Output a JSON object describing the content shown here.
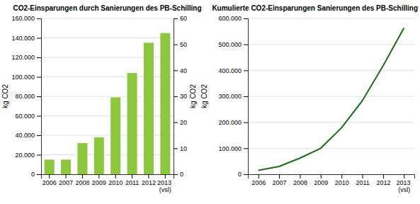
{
  "chart_data": [
    {
      "type": "bar",
      "title": "CO2-Einsparungen durch Sanierungen des PB-Schilling",
      "categories": [
        "2006",
        "2007",
        "2008",
        "2009",
        "2010",
        "2011",
        "2012",
        "2013\n(vsl)"
      ],
      "values": [
        15000,
        15000,
        32000,
        38000,
        79000,
        104000,
        135000,
        145000
      ],
      "color": "#8DC63F",
      "ylabel": "kg CO2",
      "ylim": [
        0,
        160000
      ],
      "yticks": [
        0,
        {
          "value": 20000,
          "label": "20.000"
        },
        {
          "value": 40000,
          "label": "40.000"
        },
        {
          "value": 60000,
          "label": "60.000"
        },
        {
          "value": 80000,
          "label": "80.000"
        },
        {
          "value": 100000,
          "label": "100.000"
        },
        {
          "value": 120000,
          "label": "120.000"
        },
        {
          "value": 140000,
          "label": "140.000"
        },
        {
          "value": 160000,
          "label": "160.000"
        }
      ],
      "y2label": "kg CO2",
      "y2lim": [
        0,
        60
      ],
      "y2ticks": [
        0,
        10,
        20,
        30,
        40,
        50,
        60
      ],
      "grid": true
    },
    {
      "type": "line",
      "title": "Kumulierte CO2-Einsparungen Sanierungen des PB-Schilling",
      "categories": [
        "2006",
        "2007",
        "2008",
        "2009",
        "2010",
        "2011",
        "2012",
        "2013\n(vsl)"
      ],
      "values": [
        15000,
        30000,
        62000,
        100000,
        179000,
        283000,
        418000,
        563000
      ],
      "color": "#1B6B1B",
      "ylabel": "kg CO2",
      "ylim": [
        0,
        600000
      ],
      "yticks": [
        0,
        {
          "value": 100000,
          "label": "100.000"
        },
        {
          "value": 200000,
          "label": "200.000"
        },
        {
          "value": 300000,
          "label": "300.000"
        },
        {
          "value": 400000,
          "label": "400.000"
        },
        {
          "value": 500000,
          "label": "500.000"
        },
        {
          "value": 600000,
          "label": "600.000"
        }
      ],
      "grid": true
    }
  ]
}
